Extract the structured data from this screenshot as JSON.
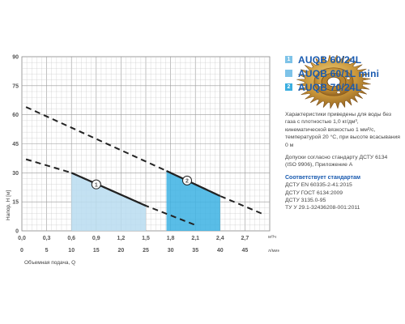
{
  "chart_data": {
    "type": "line",
    "ylabel": "Напор, H [м]",
    "xlabel": "Объемная подача, Q",
    "y_ticks": [
      "90",
      "75",
      "60",
      "45",
      "30",
      "15",
      "0"
    ],
    "x_ticks_m3": [
      "0,0",
      "0,3",
      "0,6",
      "0,9",
      "1,2",
      "1,5",
      "1,8",
      "2,1",
      "2,4",
      "2,7"
    ],
    "x_unit_m3": "м³/ч",
    "x_ticks_lpm": [
      "0",
      "5",
      "10",
      "15",
      "20",
      "25",
      "30",
      "35",
      "40",
      "45"
    ],
    "x_unit_lpm": "л/мин",
    "xlim_m3": [
      0,
      3.0
    ],
    "ylim": [
      0,
      90
    ],
    "grid": true,
    "series": [
      {
        "label": "1",
        "color": "#b8dcf0",
        "operating_range_m3": [
          0.6,
          1.5
        ],
        "solid": [
          [
            0.6,
            30
          ],
          [
            1.5,
            13
          ]
        ],
        "dashed": [
          [
            0.05,
            37
          ],
          [
            0.6,
            30
          ],
          [
            1.5,
            13
          ],
          [
            2.1,
            3
          ]
        ],
        "marker_at": [
          0.9,
          24
        ]
      },
      {
        "label": "2",
        "color": "#3cb2e3",
        "operating_range_m3": [
          1.75,
          2.4
        ],
        "solid": [
          [
            1.75,
            31
          ],
          [
            2.4,
            18
          ]
        ],
        "dashed": [
          [
            0.05,
            64
          ],
          [
            1.75,
            31
          ],
          [
            2.4,
            18
          ],
          [
            2.9,
            9
          ]
        ],
        "marker_at": [
          2.0,
          26
        ]
      }
    ]
  },
  "legend": [
    {
      "num": "1",
      "name": "AUQB 60/24L",
      "color": "#7ec3e8"
    },
    {
      "num": "",
      "name": "AUQB 60/1L mini",
      "color": "#7ec3e8"
    },
    {
      "num": "2",
      "name": "AUQB 70/24L",
      "color": "#3aaee0"
    }
  ],
  "impeller_image": "bronze-impeller",
  "description": {
    "p1": "Характеристики приведены для воды без газа с плотностью 1,0 кг/дм³, кинематической вязкостью 1 мм²/с, температурой 20 °С, при высоте всасывания 0 м",
    "p2": "Допуски согласно стандарту ДСТУ 6134 (ISO 9906), Приложение А",
    "standards_title": "Соответствует стандартам",
    "standards": [
      "ДСТУ EN 60335-2-41:2015",
      "ДСТУ ГОСТ 6134:2009",
      "ДСТУ 3135.0-95",
      "ТУ У 29.1-32436208-001:2011"
    ]
  }
}
